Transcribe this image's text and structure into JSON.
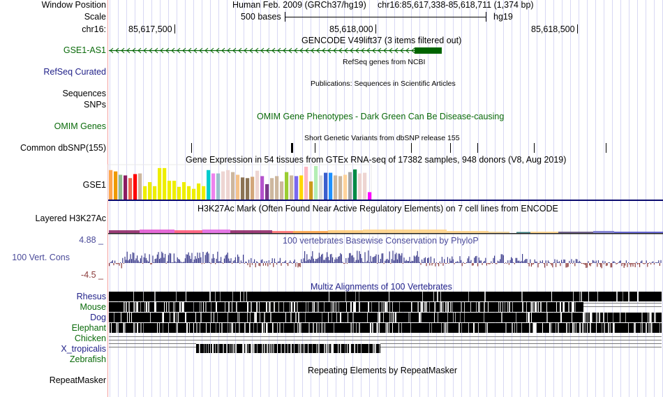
{
  "header": {
    "window_position_label": "Window Position",
    "scale_label": "Scale",
    "chrom_label": "chr16:",
    "assembly_title": "Human Feb. 2009 (GRCh37/hg19)",
    "position": "chr16:85,617,338-85,618,711 (1,374 bp)",
    "scale_text": "500 bases",
    "scale_db": "hg19",
    "ticks": [
      "85,617,500",
      "85,618,000",
      "85,618,500"
    ]
  },
  "tracks": {
    "gencode": {
      "title": "GENCODE V49lift37 (3 items filtered out)",
      "gene_label": "GSE1-AS1",
      "color": "#006400"
    },
    "refseq": {
      "label": "RefSeq Curated",
      "title": "RefSeq genes from NCBI"
    },
    "publications": {
      "label_line1": "Sequences",
      "title": "Publications: Sequences in Scientific Articles"
    },
    "snps": {
      "label": "SNPs"
    },
    "omim": {
      "label": "OMIM Genes",
      "title": "OMIM Gene Phenotypes - Dark Green Can Be Disease-causing"
    },
    "dbsnp": {
      "label": "Common dbSNP(155)",
      "title": "Short Genetic Variants from dbSNP release 155"
    },
    "gtex": {
      "label": "GSE1",
      "title": "Gene Expression in 54 tissues from GTEx RNA-seq of 17382 samples, 948 donors (V8, Aug 2019)",
      "bar_levels": [
        0.88,
        0.84,
        0.74,
        0.72,
        0.64,
        0.76,
        0.78,
        0.4,
        0.52,
        0.4,
        0.94,
        0.94,
        0.56,
        0.56,
        0.38,
        0.52,
        0.4,
        0.32,
        0.48,
        0.4,
        0.88,
        0.78,
        0.78,
        0.84,
        0.88,
        0.82,
        0.74,
        0.66,
        0.64,
        0.68,
        0.86,
        0.7,
        0.46,
        0.64,
        0.7,
        0.54,
        0.82,
        0.72,
        0.7,
        0.72,
        0.98,
        0.54,
        1.0,
        0.72,
        0.8,
        0.8,
        0.72,
        0.7,
        0.74,
        0.82,
        0.9,
        0.78,
        0.8,
        0.22
      ],
      "bar_colors": [
        "#FFA54F",
        "#EE9A00",
        "#8FBC8F",
        "#8B1C62",
        "#EE6A50",
        "#FF0000",
        "#CDB79E",
        "#EEEE00",
        "#EEEE00",
        "#EEEE00",
        "#EEEE00",
        "#EEEE00",
        "#EEEE00",
        "#EEEE00",
        "#EEEE00",
        "#EEEE00",
        "#EEEE00",
        "#EEEE00",
        "#EEEE00",
        "#EEEE00",
        "#00CDCD",
        "#EE82EE",
        "#9AC0CD",
        "#EED5D2",
        "#EED5D2",
        "#CDB79E",
        "#F4C28A",
        "#8B7355",
        "#8B7355",
        "#D2A679",
        "#EED5D2",
        "#B452CD",
        "#7A378B",
        "#CDB79E",
        "#CDB79E",
        "#CDB79E",
        "#9ACD32",
        "#CDB79E",
        "#7B68EE",
        "#FFD700",
        "#FFB6C1",
        "#CD9B1D",
        "#B4EEB4",
        "#D9D9D9",
        "#3A5FCD",
        "#1E90FF",
        "#CDB79E",
        "#CDB79E",
        "#FFD39B",
        "#A6A6A6",
        "#008B45",
        "#EED5D2",
        "#EED5D2",
        "#FF00FF"
      ]
    },
    "h3k27ac": {
      "label": "Layered H3K27Ac",
      "title": "H3K27Ac Mark (Often Found Near Active Regulatory Elements) on 7 cell lines from ENCODE"
    },
    "phylop": {
      "label": "100 Vert. Cons",
      "max": "4.88 _",
      "min": "-4.5 _",
      "title": "100 vertebrates Basewise Conservation by PhyloP"
    },
    "multiz": {
      "title": "Multiz Alignments of 100 Vertebrates",
      "species": [
        {
          "name": "Rhesus",
          "color": "#22228a"
        },
        {
          "name": "Mouse",
          "color": "#0a6a0a"
        },
        {
          "name": "Dog",
          "color": "#22228a"
        },
        {
          "name": "Elephant",
          "color": "#0a6a0a"
        },
        {
          "name": "Chicken",
          "color": "#0a6a0a"
        },
        {
          "name": "X_tropicalis",
          "color": "#22228a"
        },
        {
          "name": "Zebrafish",
          "color": "#0a6a0a"
        }
      ]
    },
    "repeatmasker": {
      "label": "RepeatMasker",
      "title": "Repeating Elements by RepeatMasker"
    }
  },
  "colors": {
    "grid": "#d8d8f4",
    "left_border": "#f4a0a0",
    "phylop_pos": "#3c3c8c",
    "phylop_neg": "#8b3a3a",
    "gtex_baseline": "#0a0a6e"
  }
}
